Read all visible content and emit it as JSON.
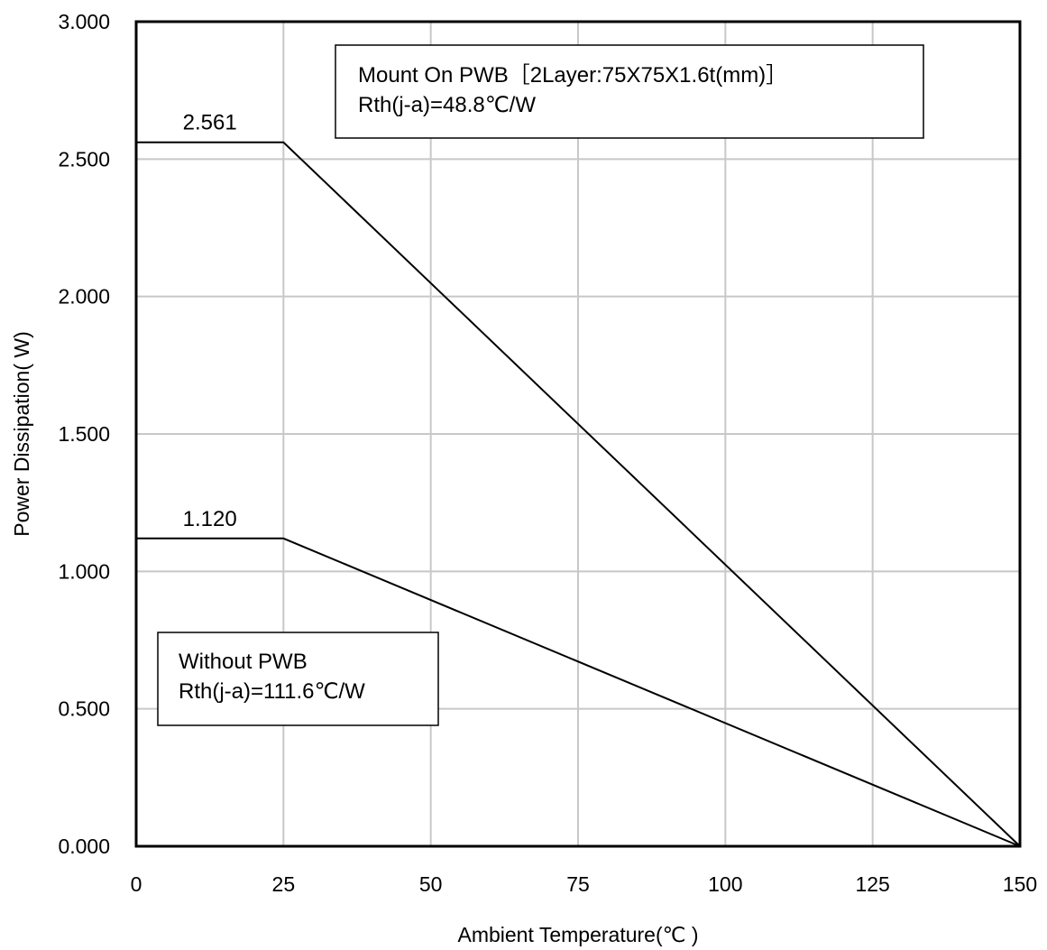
{
  "chart_data": {
    "type": "line",
    "title": "",
    "xlabel": "Ambient Temperature(℃ )",
    "ylabel": "Power Dissipation(   W)",
    "xlim": [
      0,
      150
    ],
    "ylim": [
      0,
      3
    ],
    "xticks": [
      0,
      25,
      50,
      75,
      100,
      125,
      150
    ],
    "xtick_labels": [
      "0",
      "25",
      "50",
      "75",
      "100",
      "125",
      "150"
    ],
    "yticks": [
      0,
      0.5,
      1.0,
      1.5,
      2.0,
      2.5,
      3.0
    ],
    "ytick_labels": [
      "0.000",
      "0.500",
      "1.000",
      "1.500",
      "2.000",
      "2.500",
      "3.000"
    ],
    "grid": true,
    "series": [
      {
        "x": [
          0,
          25,
          150
        ],
        "y": [
          2.561,
          2.561,
          0
        ],
        "label": "2.561"
      },
      {
        "x": [
          0,
          25,
          150
        ],
        "y": [
          1.12,
          1.12,
          0
        ],
        "label": "1.120"
      }
    ],
    "annotations": [
      {
        "lines": [
          "Mount On PWB［2Layer:75X75X1.6t(mm)］",
          "Rth(j-a)=48.8℃/W"
        ]
      },
      {
        "lines": [
          "Without PWB",
          "Rth(j-a)=111.6℃/W"
        ]
      }
    ]
  }
}
